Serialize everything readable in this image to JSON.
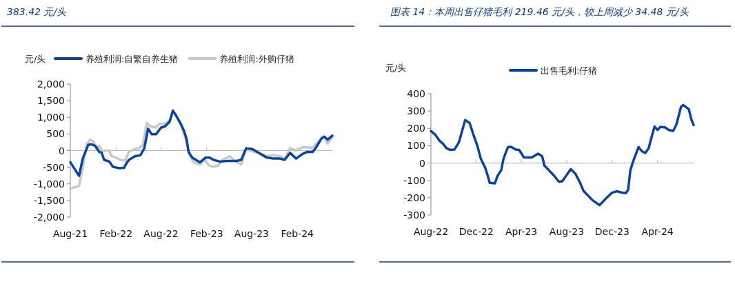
{
  "chart_data": [
    {
      "type": "line",
      "title": "383.42 元/头",
      "ylabel": "元/头",
      "legend": "top",
      "ref_lines": [
        {
          "axis": "y",
          "value": 0,
          "color": "#bbbbbb"
        }
      ],
      "xlim": [
        "2021-08-01",
        "2024-06-21"
      ],
      "xticks": [
        {
          "value": "2021-08-01",
          "label": "Aug-21"
        },
        {
          "value": "2022-02-01",
          "label": "Feb-22"
        },
        {
          "value": "2022-08-01",
          "label": "Aug-22"
        },
        {
          "value": "2023-02-01",
          "label": "Feb-23"
        },
        {
          "value": "2023-08-01",
          "label": "Aug-23"
        },
        {
          "value": "2024-02-01",
          "label": "Feb-24"
        }
      ],
      "ylim": [
        -2000,
        2000
      ],
      "yticks": [
        {
          "value": -2000,
          "label": "-2,000"
        },
        {
          "value": -1500,
          "label": "-1,500"
        },
        {
          "value": -1000,
          "label": "-1,000"
        },
        -500,
        0,
        500,
        {
          "value": 1000,
          "label": "1,000"
        },
        {
          "value": 1500,
          "label": "1,500"
        },
        {
          "value": 2000,
          "label": "2,000"
        }
      ],
      "series": [
        {
          "name": "养殖利润:外购仔猪",
          "color": "#c8c8c8",
          "x": [
            "2021-08-01",
            "2021-09-05",
            "2021-09-20",
            "2021-10-05",
            "2021-10-20",
            "2021-11-02",
            "2021-11-15",
            "2021-11-25",
            "2021-12-08",
            "2021-12-20",
            "2022-01-03",
            "2022-01-15",
            "2022-02-01",
            "2022-02-20",
            "2022-03-10",
            "2022-03-25",
            "2022-04-15",
            "2022-05-05",
            "2022-05-20",
            "2022-06-05",
            "2022-06-20",
            "2022-07-10",
            "2022-07-25",
            "2022-08-15",
            "2022-09-05",
            "2022-09-18",
            "2022-10-05",
            "2022-10-20",
            "2022-11-05",
            "2022-11-15",
            "2022-11-25",
            "2022-12-10",
            "2023-01-05",
            "2023-01-25",
            "2023-02-10",
            "2023-03-01",
            "2023-03-20",
            "2023-04-05",
            "2023-05-05",
            "2023-05-25",
            "2023-06-20",
            "2023-07-10",
            "2023-08-05",
            "2023-09-05",
            "2023-10-01",
            "2023-10-27",
            "2023-11-23",
            "2023-12-12",
            "2024-01-03",
            "2024-01-27",
            "2024-02-22",
            "2024-03-12",
            "2024-04-03",
            "2024-04-17",
            "2024-05-08",
            "2024-05-20",
            "2024-06-02",
            "2024-06-21"
          ],
          "values": [
            -1140,
            -1070,
            -520,
            170,
            330,
            280,
            40,
            140,
            -20,
            0,
            0,
            -170,
            -210,
            -280,
            -300,
            -40,
            40,
            70,
            170,
            830,
            730,
            690,
            800,
            800,
            900,
            1210,
            1000,
            800,
            420,
            170,
            -140,
            -350,
            -420,
            -280,
            -450,
            -490,
            -450,
            -280,
            -170,
            -310,
            -420,
            40,
            -20,
            -90,
            -170,
            -140,
            -170,
            -240,
            70,
            0,
            100,
            100,
            90,
            210,
            370,
            400,
            210,
            400
          ]
        },
        {
          "name": "养殖利润:自繁自养生猪",
          "color": "#0a44a0",
          "x": [
            "2021-08-01",
            "2021-09-05",
            "2021-09-20",
            "2021-10-12",
            "2021-10-25",
            "2021-11-10",
            "2021-11-25",
            "2021-12-05",
            "2021-12-15",
            "2022-01-05",
            "2022-01-20",
            "2022-02-15",
            "2022-03-05",
            "2022-03-15",
            "2022-03-25",
            "2022-04-18",
            "2022-05-10",
            "2022-05-26",
            "2022-06-10",
            "2022-06-25",
            "2022-07-12",
            "2022-08-01",
            "2022-08-18",
            "2022-09-05",
            "2022-09-18",
            "2022-10-02",
            "2022-10-20",
            "2022-11-02",
            "2022-11-12",
            "2022-11-20",
            "2022-12-05",
            "2023-01-05",
            "2023-01-28",
            "2023-02-12",
            "2023-03-01",
            "2023-03-25",
            "2023-04-25",
            "2023-06-01",
            "2023-06-20",
            "2023-07-10",
            "2023-08-05",
            "2023-09-03",
            "2023-10-01",
            "2023-10-27",
            "2023-11-23",
            "2023-12-12",
            "2024-01-03",
            "2024-01-27",
            "2024-02-22",
            "2024-03-12",
            "2024-04-03",
            "2024-04-17",
            "2024-05-10",
            "2024-05-20",
            "2024-06-02",
            "2024-06-21"
          ],
          "values": [
            -350,
            -760,
            -240,
            170,
            190,
            140,
            -40,
            -60,
            -280,
            -330,
            -490,
            -530,
            -520,
            -380,
            -280,
            -170,
            -140,
            70,
            660,
            490,
            490,
            690,
            730,
            870,
            1200,
            1040,
            800,
            590,
            350,
            -40,
            -210,
            -350,
            -210,
            -210,
            -280,
            -330,
            -310,
            -310,
            -280,
            70,
            40,
            -90,
            -210,
            -240,
            -240,
            -280,
            -70,
            -240,
            -100,
            -40,
            -40,
            100,
            380,
            420,
            330,
            450
          ]
        }
      ]
    },
    {
      "type": "line",
      "title": "图表 14：本周出售仔猪毛利 219.46 元/头，较上周减少 34.48 元/头",
      "ylabel": "元/头",
      "legend": "top",
      "ref_lines": [
        {
          "axis": "y",
          "value": 0,
          "color": "#bbbbbb"
        }
      ],
      "xlim": [
        "2022-08-01",
        "2024-07-07"
      ],
      "xticks": [
        {
          "value": "2022-08-01",
          "label": "Aug-22"
        },
        {
          "value": "2022-12-01",
          "label": "Dec-22"
        },
        {
          "value": "2023-04-01",
          "label": "Apr-23"
        },
        {
          "value": "2023-08-01",
          "label": "Aug-23"
        },
        {
          "value": "2023-12-01",
          "label": "Dec-23"
        },
        {
          "value": "2024-04-01",
          "label": "Apr-24"
        }
      ],
      "ylim": [
        -300,
        400
      ],
      "yticks": [
        -300,
        -200,
        -100,
        0,
        100,
        200,
        300,
        400
      ],
      "series": [
        {
          "name": "出售毛利:仔猪",
          "color": "#0a44a0",
          "x": [
            "2022-08-01",
            "2022-08-12",
            "2022-08-24",
            "2022-09-02",
            "2022-09-12",
            "2022-09-21",
            "2022-10-03",
            "2022-10-15",
            "2022-11-01",
            "2022-11-13",
            "2022-11-22",
            "2022-12-04",
            "2022-12-13",
            "2022-12-25",
            "2022-12-31",
            "2023-01-06",
            "2023-01-20",
            "2023-01-27",
            "2023-02-06",
            "2023-02-12",
            "2023-02-24",
            "2023-03-04",
            "2023-03-17",
            "2023-03-26",
            "2023-04-08",
            "2023-04-29",
            "2023-05-16",
            "2023-05-27",
            "2023-06-02",
            "2023-06-26",
            "2023-07-11",
            "2023-07-20",
            "2023-07-30",
            "2023-08-12",
            "2023-08-24",
            "2023-09-06",
            "2023-09-15",
            "2023-10-09",
            "2023-10-28",
            "2023-11-16",
            "2023-12-01",
            "2023-12-13",
            "2023-12-28",
            "2024-01-07",
            "2024-01-13",
            "2024-01-19",
            "2024-01-28",
            "2024-02-10",
            "2024-02-19",
            "2024-02-28",
            "2024-03-08",
            "2024-03-18",
            "2024-03-24",
            "2024-04-01",
            "2024-04-09",
            "2024-04-22",
            "2024-05-01",
            "2024-05-13",
            "2024-05-22",
            "2024-06-03",
            "2024-06-09",
            "2024-06-24",
            "2024-07-01",
            "2024-07-07"
          ],
          "values": [
            185,
            165,
            129,
            112,
            85,
            76,
            78,
            118,
            248,
            231,
            171,
            98,
            25,
            -28,
            -68,
            -114,
            -117,
            -74,
            -41,
            25,
            92,
            94,
            78,
            76,
            32,
            32,
            54,
            39,
            -15,
            -68,
            -108,
            -105,
            -74,
            -35,
            -61,
            -114,
            -161,
            -214,
            -243,
            -201,
            -171,
            -163,
            -171,
            -174,
            -154,
            -41,
            19,
            92,
            68,
            58,
            85,
            165,
            211,
            191,
            209,
            205,
            191,
            185,
            224,
            324,
            335,
            311,
            251,
            219
          ]
        }
      ]
    }
  ]
}
